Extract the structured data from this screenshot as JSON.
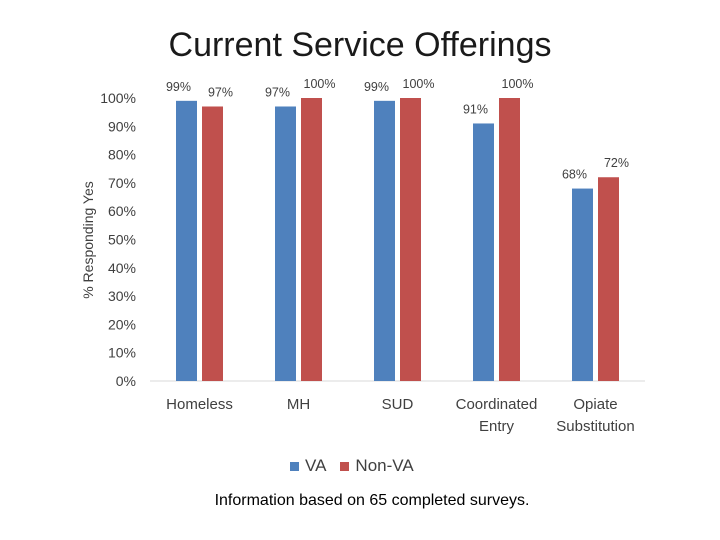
{
  "chart_data": {
    "type": "bar",
    "title": "Current Service Offerings",
    "ylabel": "% Responding Yes",
    "xlabel": "",
    "ylim": [
      0,
      100
    ],
    "yticks": [
      "0%",
      "10%",
      "20%",
      "30%",
      "40%",
      "50%",
      "60%",
      "70%",
      "80%",
      "90%",
      "100%"
    ],
    "categories": [
      [
        "Homeless"
      ],
      [
        "MH"
      ],
      [
        "SUD"
      ],
      [
        "Coordinated",
        "Entry"
      ],
      [
        "Opiate",
        "Substitution"
      ]
    ],
    "series": [
      {
        "name": "VA",
        "color": "#4f81bd",
        "values": [
          99,
          97,
          99,
          91,
          68
        ],
        "labels": [
          "99%",
          "97%",
          "99%",
          "91%",
          "68%"
        ]
      },
      {
        "name": "Non-VA",
        "color": "#c0504d",
        "values": [
          97,
          100,
          100,
          100,
          72
        ],
        "labels": [
          "97%",
          "100%",
          "100%",
          "100%",
          "72%"
        ]
      }
    ],
    "legend_position": "bottom",
    "grid": false
  },
  "footnote": "Information based on 65 completed surveys."
}
